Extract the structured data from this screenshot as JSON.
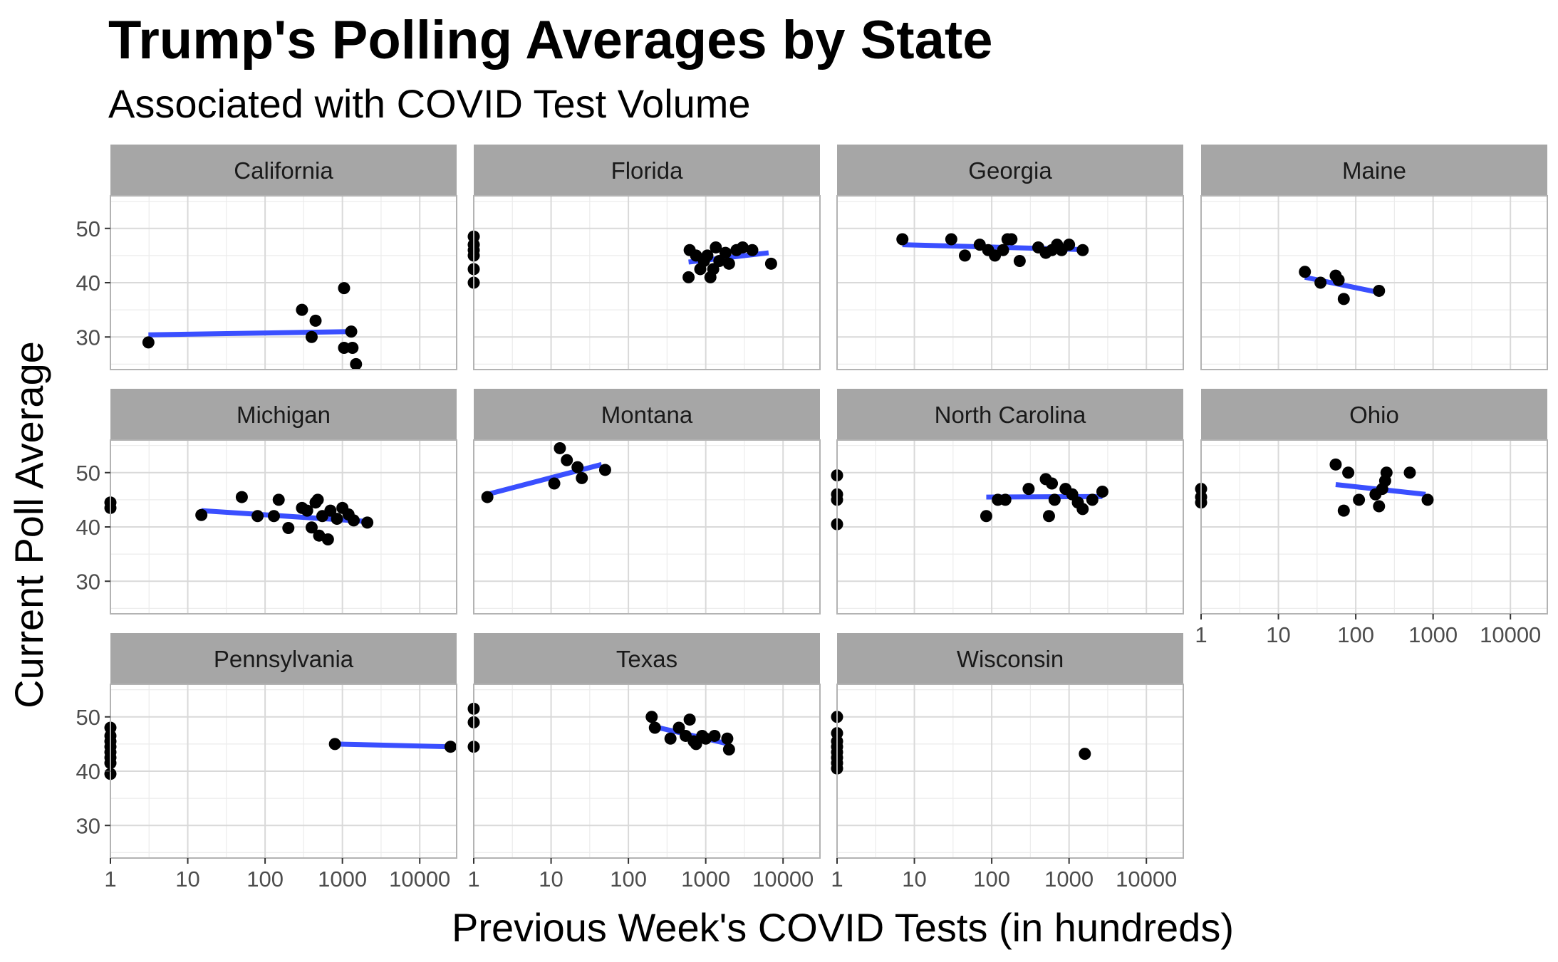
{
  "chart_data": {
    "type": "scatter",
    "title": "Trump's Polling Averages by State",
    "subtitle": "Associated with COVID Test Volume",
    "xlabel": "Previous Week's COVID Tests (in hundreds)",
    "ylabel": "Current Poll Average",
    "x_scale": "log10",
    "xlim": [
      1,
      30000
    ],
    "ylim": [
      24,
      56
    ],
    "x_ticks": [
      1,
      10,
      100,
      1000,
      10000
    ],
    "x_tick_labels": [
      "1",
      "10",
      "100",
      "1000",
      "10000"
    ],
    "y_ticks": [
      30,
      40,
      50
    ],
    "y_tick_labels": [
      "30",
      "40",
      "50"
    ],
    "grid": true,
    "colors": {
      "point": "#000000",
      "trend_line": "#3a4fff",
      "strip": "#a6a6a6",
      "grid_major": "#d9d9d9",
      "grid_minor": "#ececec",
      "panel_border": "#b3b3b3"
    },
    "panels": [
      {
        "state": "California",
        "points": [
          [
            3.1,
            29
          ],
          [
            300,
            35
          ],
          [
            400,
            30
          ],
          [
            450,
            33
          ],
          [
            1050,
            39
          ],
          [
            1050,
            28
          ],
          [
            1300,
            31
          ],
          [
            1350,
            28
          ],
          [
            1500,
            25
          ]
        ],
        "trend": [
          [
            3.1,
            30.4
          ],
          [
            1400,
            31
          ]
        ]
      },
      {
        "state": "Florida",
        "points": [
          [
            1,
            48.5
          ],
          [
            1,
            47
          ],
          [
            1,
            46
          ],
          [
            1,
            45
          ],
          [
            1,
            42.5
          ],
          [
            1,
            40
          ],
          [
            600,
            41
          ],
          [
            620,
            46
          ],
          [
            750,
            45
          ],
          [
            850,
            42.5
          ],
          [
            950,
            44
          ],
          [
            1050,
            45
          ],
          [
            1150,
            41
          ],
          [
            1250,
            42.5
          ],
          [
            1350,
            46.5
          ],
          [
            1500,
            44
          ],
          [
            1800,
            45.5
          ],
          [
            2000,
            43.5
          ],
          [
            2500,
            46
          ],
          [
            3000,
            46.5
          ],
          [
            4000,
            46
          ],
          [
            7000,
            43.5
          ]
        ],
        "trend": [
          [
            600,
            43.8
          ],
          [
            6500,
            45.5
          ]
        ]
      },
      {
        "state": "Georgia",
        "points": [
          [
            7,
            48
          ],
          [
            30,
            48
          ],
          [
            45,
            45
          ],
          [
            70,
            47
          ],
          [
            90,
            46
          ],
          [
            110,
            45
          ],
          [
            140,
            46
          ],
          [
            160,
            48
          ],
          [
            180,
            48
          ],
          [
            230,
            44
          ],
          [
            400,
            46.5
          ],
          [
            500,
            45.5
          ],
          [
            600,
            46
          ],
          [
            700,
            47
          ],
          [
            800,
            46
          ],
          [
            1000,
            47
          ],
          [
            1500,
            46
          ]
        ],
        "trend": [
          [
            7,
            47
          ],
          [
            1500,
            46.1
          ]
        ]
      },
      {
        "state": "Maine",
        "points": [
          [
            22,
            42
          ],
          [
            35,
            40
          ],
          [
            55,
            41.3
          ],
          [
            60,
            40.5
          ],
          [
            70,
            37
          ],
          [
            200,
            38.5
          ]
        ],
        "trend": [
          [
            22,
            41
          ],
          [
            200,
            38.2
          ]
        ]
      },
      {
        "state": "Michigan",
        "points": [
          [
            1,
            44.5
          ],
          [
            1,
            43.5
          ],
          [
            15,
            42.2
          ],
          [
            50,
            45.5
          ],
          [
            80,
            42
          ],
          [
            130,
            42
          ],
          [
            150,
            45
          ],
          [
            200,
            39.8
          ],
          [
            300,
            43.5
          ],
          [
            350,
            43
          ],
          [
            400,
            39.9
          ],
          [
            450,
            44.5
          ],
          [
            480,
            45
          ],
          [
            500,
            38.4
          ],
          [
            550,
            42
          ],
          [
            650,
            37.7
          ],
          [
            700,
            43
          ],
          [
            850,
            41.5
          ],
          [
            1000,
            43.5
          ],
          [
            1200,
            42.3
          ],
          [
            1400,
            41.2
          ],
          [
            2100,
            40.8
          ]
        ],
        "trend": [
          [
            15,
            43
          ],
          [
            2100,
            41
          ]
        ]
      },
      {
        "state": "Montana",
        "points": [
          [
            1.5,
            45.5
          ],
          [
            11,
            48
          ],
          [
            13,
            54.5
          ],
          [
            16,
            52.3
          ],
          [
            22,
            51
          ],
          [
            25,
            49
          ],
          [
            50,
            50.5
          ]
        ],
        "trend": [
          [
            1.5,
            46
          ],
          [
            45,
            51.5
          ]
        ]
      },
      {
        "state": "North Carolina",
        "points": [
          [
            1,
            49.5
          ],
          [
            1,
            46
          ],
          [
            1,
            45
          ],
          [
            1,
            40.5
          ],
          [
            85,
            42
          ],
          [
            120,
            45
          ],
          [
            150,
            45
          ],
          [
            300,
            47
          ],
          [
            500,
            48.8
          ],
          [
            550,
            42
          ],
          [
            600,
            48
          ],
          [
            650,
            45
          ],
          [
            900,
            47
          ],
          [
            1100,
            46
          ],
          [
            1300,
            44.5
          ],
          [
            1500,
            43.3
          ],
          [
            2000,
            45
          ],
          [
            2700,
            46.5
          ]
        ],
        "trend": [
          [
            85,
            45.5
          ],
          [
            2700,
            45.6
          ]
        ]
      },
      {
        "state": "Ohio",
        "points": [
          [
            1,
            47
          ],
          [
            1,
            45.5
          ],
          [
            1,
            44.5
          ],
          [
            55,
            51.5
          ],
          [
            70,
            43
          ],
          [
            80,
            50
          ],
          [
            110,
            45
          ],
          [
            180,
            46
          ],
          [
            200,
            43.8
          ],
          [
            220,
            47
          ],
          [
            240,
            48.5
          ],
          [
            250,
            50
          ],
          [
            500,
            50
          ],
          [
            850,
            45
          ]
        ],
        "trend": [
          [
            55,
            47.8
          ],
          [
            800,
            46
          ]
        ]
      },
      {
        "state": "Pennsylvania",
        "points": [
          [
            1,
            48
          ],
          [
            1,
            46.5
          ],
          [
            1,
            45.5
          ],
          [
            1,
            44.5
          ],
          [
            1,
            43.5
          ],
          [
            1,
            42.5
          ],
          [
            1,
            41.5
          ],
          [
            1,
            39.5
          ],
          [
            800,
            45
          ],
          [
            25000,
            44.5
          ]
        ],
        "trend": [
          [
            800,
            45
          ],
          [
            24000,
            44.5
          ]
        ]
      },
      {
        "state": "Texas",
        "points": [
          [
            1,
            51.5
          ],
          [
            1,
            49
          ],
          [
            1,
            44.5
          ],
          [
            200,
            50
          ],
          [
            220,
            48
          ],
          [
            350,
            46
          ],
          [
            450,
            48
          ],
          [
            550,
            46.5
          ],
          [
            620,
            49.5
          ],
          [
            700,
            45.5
          ],
          [
            750,
            45
          ],
          [
            900,
            46.5
          ],
          [
            1000,
            46
          ],
          [
            1300,
            46.5
          ],
          [
            1900,
            46
          ],
          [
            2000,
            44
          ]
        ],
        "trend": [
          [
            200,
            48.3
          ],
          [
            2000,
            45
          ]
        ]
      },
      {
        "state": "Wisconsin",
        "points": [
          [
            1,
            50
          ],
          [
            1,
            47
          ],
          [
            1,
            45.5
          ],
          [
            1,
            44.5
          ],
          [
            1,
            43.5
          ],
          [
            1,
            42.5
          ],
          [
            1,
            41.5
          ],
          [
            1,
            40.5
          ],
          [
            1600,
            43.2
          ]
        ],
        "trend": []
      }
    ]
  }
}
